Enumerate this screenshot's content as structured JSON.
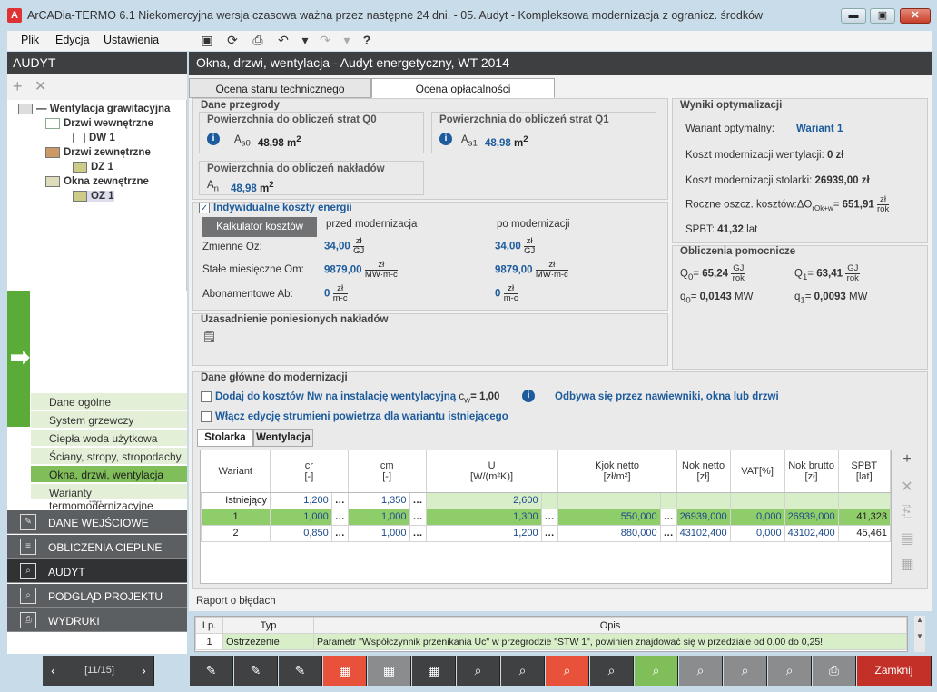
{
  "window": {
    "title": "ArCADia-TERMO 6.1 Niekomercyjna wersja czasowa ważna przez następne 24 dni. - 05. Audyt - Kompleksowa modernizacja z ogranicz. środków",
    "min": "▬",
    "max": "▣",
    "close": "✕"
  },
  "menu": [
    "Plik",
    "Edycja",
    "Ustawienia"
  ],
  "toolbar_icons": [
    "save-icon",
    "refresh-icon",
    "preview-icon",
    "undo-icon",
    "undo-dropdown-icon",
    "redo-icon",
    "redo-dropdown-icon",
    "help-icon"
  ],
  "left": {
    "header": "AUDYT",
    "tree": {
      "root": "Wentylacja grawitacyjna",
      "n1": "Drzwi wewnętrzne",
      "n1c": "DW 1",
      "n2": "Drzwi zewnętrzne",
      "n2c": "DZ 1",
      "n3": "Okna zewnętrzne",
      "n3c": "OZ 1"
    },
    "subnav": [
      "Dane ogólne",
      "System grzewczy",
      "Ciepła woda użytkowa",
      "Ściany, stropy, stropodachy",
      "Okna, drzwi, wentylacja",
      "Warianty termomodernizacyjne"
    ],
    "mainnav": [
      "DANE WEJŚCIOWE",
      "OBLICZENIA CIEPLNE",
      "AUDYT",
      "PODGLĄD PROJEKTU",
      "WYDRUKI"
    ]
  },
  "main": {
    "header": "Okna, drzwi, wentylacja - Audyt energetyczny, WT 2014",
    "tabs": [
      "Ocena stanu technicznego",
      "Ocena opłacalności"
    ],
    "dane_przegrody": "Dane przegrody",
    "q0_title": "Powierzchnia do obliczeń strat Q0",
    "q0_label": "A",
    "q0_sub": "s0",
    "q0_val": "48,98",
    "q0_unit": "m",
    "q0_exp": "2",
    "q1_title": "Powierzchnia do obliczeń strat Q1",
    "q1_label": "A",
    "q1_sub": "s1",
    "q1_val": "48,98",
    "q1_unit": "m",
    "q1_exp": "2",
    "n_title": "Powierzchnia do obliczeń nakładów",
    "n_label": "A",
    "n_sub": "n",
    "n_val": "48,98",
    "n_unit": "m",
    "n_exp": "2",
    "indiv_label": "Indywidualne koszty energii",
    "kalk_btn": "Kalkulator kosztów",
    "przed": "przed modernizacja",
    "po": "po modernizacji",
    "costs": [
      {
        "label": "Zmienne Oz:",
        "before": "34,00",
        "after": "34,00",
        "un": "zł",
        "ud": "GJ"
      },
      {
        "label": "Stałe miesięczne Om:",
        "before": "9879,00",
        "after": "9879,00",
        "un": "zł",
        "ud": "MW·m-c"
      },
      {
        "label": "Abonamentowe Ab:",
        "before": "0",
        "after": "0",
        "un": "zł",
        "ud": "m-c"
      }
    ],
    "uzas_title": "Uzasadnienie poniesionych nakładów",
    "wyniki": {
      "title": "Wyniki optymalizacji",
      "wariant_label": "Wariant optymalny:",
      "wariant_val": "Wariant 1",
      "koszt_went": "Koszt modernizacji wentylacji:",
      "koszt_went_val": "0 zł",
      "koszt_stol": "Koszt modernizacji stolarki:",
      "koszt_stol_val": "26939,00 zł",
      "roczne": "Roczne oszcz. kosztów:ΔO",
      "roczne_sub": "rOk+w",
      "roczne_val": "651,91",
      "roczne_un": "zł",
      "roczne_ud": "rok",
      "spbt": "SPBT:",
      "spbt_val": "41,32",
      "spbt_unit": "lat"
    },
    "pomoc": {
      "title": "Obliczenia pomocnicze",
      "q0": "Q",
      "q0s": "0",
      "q0v": "65,24",
      "q0un": "GJ",
      "q0ud": "rok",
      "q1": "Q",
      "q1s": "1",
      "q1v": "63,41",
      "q1un": "GJ",
      "q1ud": "rok",
      "qq0": "q",
      "qq0s": "0",
      "qq0v": "0,0143",
      "qq0u": "MW",
      "qq1": "q",
      "qq1s": "1",
      "qq1v": "0,0093",
      "qq1u": "MW"
    },
    "glowne": {
      "title": "Dane główne do modernizacji",
      "c1": "Dodaj do kosztów Nw na instalację wentylacyjną",
      "cw": "c",
      "cws": "w",
      "cwv": "= 1,00",
      "info_text": "Odbywa się przez nawiewniki, okna lub drzwi",
      "c2": "Włącz edycję strumieni powietrza dla wariantu istniejącego"
    },
    "subtabs": [
      "Stolarka",
      "Wentylacja"
    ],
    "table": {
      "headers": [
        [
          "Wariant",
          ""
        ],
        [
          "cr",
          "[-]"
        ],
        [
          "cm",
          "[-]"
        ],
        [
          "U",
          "[W/(m²K)]"
        ],
        [
          "Kjok netto",
          "[zł/m²]"
        ],
        [
          "Nok netto",
          "[zł]"
        ],
        [
          "VAT[%]",
          ""
        ],
        [
          "Nok brutto",
          "[zł]"
        ],
        [
          "SPBT",
          "[lat]"
        ]
      ],
      "rows": [
        {
          "w": "Istniejący",
          "cr": "1,200",
          "cm": "1,350",
          "u": "2,600",
          "kjok": "",
          "nok": "",
          "vat": "",
          "noknb": "",
          "spbt": ""
        },
        {
          "w": "1",
          "cr": "1,000",
          "cm": "1,000",
          "u": "1,300",
          "kjok": "550,000",
          "nok": "26939,000",
          "vat": "0,000",
          "noknb": "26939,000",
          "spbt": "41,323"
        },
        {
          "w": "2",
          "cr": "0,850",
          "cm": "1,000",
          "u": "1,200",
          "kjok": "880,000",
          "nok": "43102,400",
          "vat": "0,000",
          "noknb": "43102,400",
          "spbt": "45,461"
        }
      ]
    }
  },
  "errors": {
    "title": "Raport o błędach",
    "headers": [
      "Lp.",
      "Typ",
      "Opis"
    ],
    "rows": [
      {
        "lp": "1",
        "typ": "Ostrzeżenie",
        "opis": "Parametr \"Współczynnik przenikania Uc\" w przegrodzie \"STW 1\", powinien znajdować się w przedziale od 0,00 do 0,25!"
      }
    ]
  },
  "bottom": {
    "page": "[11/15]",
    "close": "Zamknij",
    "dots": "•••••"
  },
  "colors": {
    "accent_green": "#5bab39",
    "red": "#e8523a",
    "dark": "#3d3f40",
    "blue": "#1d5b9c"
  }
}
